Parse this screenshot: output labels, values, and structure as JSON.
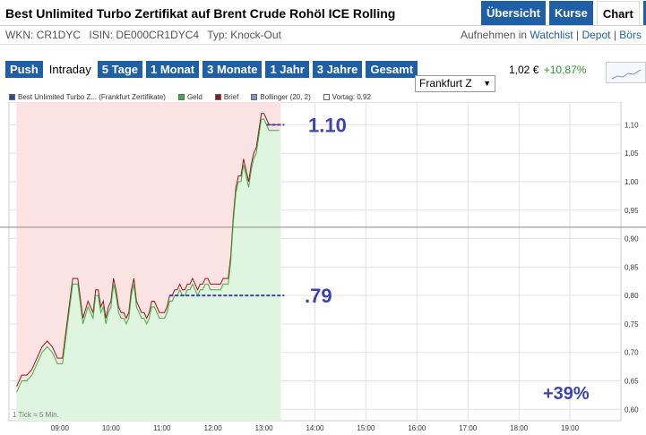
{
  "header": {
    "title": "Best Unlimited Turbo Zertifikat auf Brent Crude Rohöl ICE Rolling",
    "nav": [
      "Übersicht",
      "Kurse",
      "Chart",
      "R"
    ],
    "active_nav": "Chart"
  },
  "subbar": {
    "wkn": "WKN: CR1DYC",
    "isin": "ISIN: DE000CR1DYC4",
    "typ": "Typ: Knock-Out",
    "aufnehmen": "Aufnehmen in",
    "watchlist": "Watchlist",
    "sep1": "|",
    "depot": "Depot",
    "sep2": "|",
    "boerse": "Börs"
  },
  "tabs": [
    "Push",
    "Intraday",
    "5 Tage",
    "1 Monat",
    "3 Monate",
    "1 Jahr",
    "3 Jahre",
    "Gesamt"
  ],
  "active_tab": "Intraday",
  "exchange_select": "Frankfurt Z",
  "quote": {
    "price": "1,02 €",
    "change": "+10,87%"
  },
  "colors": {
    "nav_blue": "#1f5fa6",
    "geld": "#3cb043",
    "brief": "#8b1a1a",
    "bollinger": "#7a95c9",
    "annotation": "#3a43b0",
    "up_fill": "#dff5df",
    "down_fill": "#fbe3e3"
  },
  "legend": [
    {
      "label": "Best Unlimited Turbo Z... (Frankfurt Zertifikate)",
      "color": "#1f4e9a"
    },
    {
      "label": "Geld",
      "color": "#3cb043"
    },
    {
      "label": "Brief",
      "color": "#8b1a1a"
    },
    {
      "label": "Bollinger (20, 2)",
      "color": "#7a95c9"
    },
    {
      "label": "Vortag: 0,92",
      "color": "#ffffff"
    }
  ],
  "chart_data": {
    "type": "line",
    "x_ticks": [
      "09:00",
      "10:00",
      "11:00",
      "12:00",
      "13:00",
      "14:00",
      "15:00",
      "16:00",
      "17:00",
      "18:00",
      "19:00"
    ],
    "y_ticks": [
      "1,10",
      "1,05",
      "1,00",
      "0,95",
      "0,90",
      "0,85",
      "0,80",
      "0,75",
      "0,70",
      "0,65",
      "0,60"
    ],
    "ylim": [
      0.58,
      1.14
    ],
    "previous_close": 0.92,
    "footnote": "1 Tick = 5 Min.",
    "series": [
      {
        "name": "Geld",
        "x": [
          8.15,
          8.25,
          8.35,
          8.45,
          8.55,
          8.65,
          8.75,
          8.85,
          8.95,
          9.05,
          9.15,
          9.25,
          9.35,
          9.45,
          9.55,
          9.65,
          9.7,
          9.75,
          9.8,
          9.85,
          9.9,
          9.95,
          10.0,
          10.05,
          10.1,
          10.15,
          10.2,
          10.25,
          10.3,
          10.35,
          10.4,
          10.45,
          10.5,
          10.55,
          10.6,
          10.65,
          10.7,
          10.75,
          10.8,
          10.85,
          10.9,
          10.95,
          11.0,
          11.05,
          11.1,
          11.15,
          11.2,
          11.25,
          11.3,
          11.35,
          11.4,
          11.45,
          11.5,
          11.55,
          11.6,
          11.65,
          11.7,
          11.75,
          11.8,
          11.85,
          11.9,
          11.95,
          12.0,
          12.05,
          12.1,
          12.15,
          12.2,
          12.25,
          12.3,
          12.35,
          12.4,
          12.45,
          12.5,
          12.55,
          12.6,
          12.65,
          12.7,
          12.75,
          12.8,
          12.85,
          12.9,
          12.95,
          13.0,
          13.05,
          13.1,
          13.15,
          13.2,
          13.25,
          13.3
        ],
        "values": [
          0.63,
          0.65,
          0.65,
          0.66,
          0.68,
          0.7,
          0.71,
          0.7,
          0.68,
          0.68,
          0.75,
          0.82,
          0.82,
          0.75,
          0.78,
          0.76,
          0.8,
          0.8,
          0.77,
          0.78,
          0.75,
          0.77,
          0.78,
          0.82,
          0.8,
          0.77,
          0.76,
          0.76,
          0.75,
          0.76,
          0.8,
          0.82,
          0.78,
          0.77,
          0.76,
          0.76,
          0.75,
          0.76,
          0.78,
          0.78,
          0.77,
          0.76,
          0.76,
          0.76,
          0.77,
          0.79,
          0.79,
          0.8,
          0.8,
          0.81,
          0.8,
          0.8,
          0.81,
          0.81,
          0.82,
          0.81,
          0.8,
          0.81,
          0.81,
          0.82,
          0.82,
          0.81,
          0.81,
          0.81,
          0.81,
          0.81,
          0.82,
          0.82,
          0.82,
          0.86,
          0.93,
          0.98,
          1.0,
          1.0,
          1.03,
          1.01,
          0.99,
          1.02,
          1.04,
          1.05,
          1.08,
          1.11,
          1.11,
          1.1,
          1.09,
          1.09,
          1.09,
          1.09,
          1.09
        ]
      },
      {
        "name": "Brief",
        "x": [
          8.15,
          8.25,
          8.35,
          8.45,
          8.55,
          8.65,
          8.75,
          8.85,
          8.95,
          9.05,
          9.15,
          9.25,
          9.35,
          9.45,
          9.55,
          9.65,
          9.7,
          9.75,
          9.8,
          9.85,
          9.9,
          9.95,
          10.0,
          10.05,
          10.1,
          10.15,
          10.2,
          10.25,
          10.3,
          10.35,
          10.4,
          10.45,
          10.5,
          10.55,
          10.6,
          10.65,
          10.7,
          10.75,
          10.8,
          10.85,
          10.9,
          10.95,
          11.0,
          11.05,
          11.1,
          11.15,
          11.2,
          11.25,
          11.3,
          11.35,
          11.4,
          11.45,
          11.5,
          11.55,
          11.6,
          11.65,
          11.7,
          11.75,
          11.8,
          11.85,
          11.9,
          11.95,
          12.0,
          12.05,
          12.1,
          12.15,
          12.2,
          12.25,
          12.3,
          12.35,
          12.4,
          12.45,
          12.5,
          12.55,
          12.6,
          12.65,
          12.7,
          12.75,
          12.8,
          12.85,
          12.9,
          12.95,
          13.0,
          13.05,
          13.1,
          13.15,
          13.2,
          13.25,
          13.3
        ],
        "values": [
          0.64,
          0.66,
          0.66,
          0.67,
          0.69,
          0.71,
          0.72,
          0.71,
          0.69,
          0.69,
          0.76,
          0.83,
          0.83,
          0.76,
          0.79,
          0.77,
          0.81,
          0.81,
          0.78,
          0.79,
          0.76,
          0.78,
          0.79,
          0.83,
          0.81,
          0.78,
          0.77,
          0.77,
          0.76,
          0.77,
          0.81,
          0.83,
          0.79,
          0.78,
          0.77,
          0.77,
          0.76,
          0.77,
          0.79,
          0.79,
          0.78,
          0.77,
          0.77,
          0.77,
          0.78,
          0.8,
          0.8,
          0.81,
          0.81,
          0.82,
          0.81,
          0.81,
          0.82,
          0.82,
          0.83,
          0.82,
          0.81,
          0.82,
          0.82,
          0.83,
          0.83,
          0.82,
          0.82,
          0.82,
          0.82,
          0.82,
          0.83,
          0.83,
          0.83,
          0.87,
          0.94,
          0.99,
          1.01,
          1.01,
          1.04,
          1.02,
          1.0,
          1.03,
          1.05,
          1.06,
          1.09,
          1.12,
          1.12,
          1.11,
          1.1,
          1.1,
          1.1,
          1.1,
          1.1
        ]
      }
    ],
    "annotations": [
      {
        "text": "1.10",
        "value": 1.1,
        "x_from": 13.05,
        "x_to": 13.4
      },
      {
        "text": ".79",
        "value": 0.8,
        "x_from": 11.15,
        "x_to": 13.4
      },
      {
        "text": "+39%"
      }
    ]
  }
}
